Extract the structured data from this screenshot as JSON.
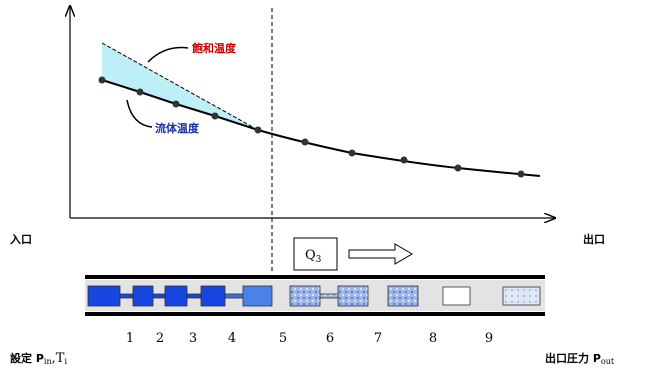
{
  "labels": {
    "saturation": "飽和温度",
    "fluid": "流体温度",
    "inlet": "入口",
    "outlet": "出口",
    "flow": {
      "main": "Q",
      "sub": "3"
    },
    "setting": {
      "prefix": "設定 P",
      "sub1": "in",
      "mid": ",T",
      "sub2": "i"
    },
    "outlet_pressure": {
      "prefix": "出口圧力 P",
      "sub": "out"
    }
  },
  "segments": [
    "1",
    "2",
    "3",
    "4",
    "5",
    "6",
    "7",
    "8",
    "9"
  ]
}
